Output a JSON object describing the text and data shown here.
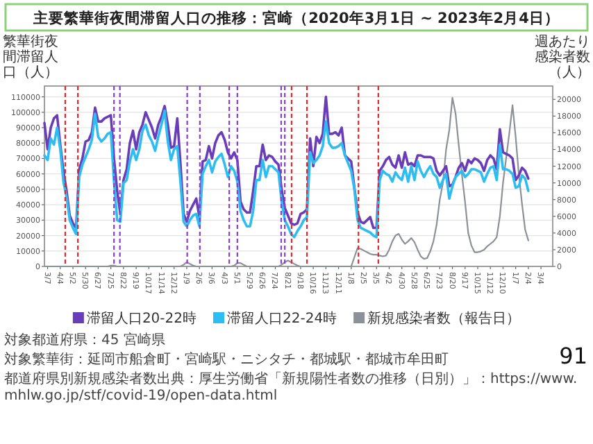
{
  "chart_data": {
    "type": "line",
    "title": "主要繁華街夜間滞留人口の推移：宮崎（2020年3月1日 ~ 2023年2月4日）",
    "ylabel": "繁華街夜間滞留人口（人）",
    "y2label": "週あたり感染者数（人）",
    "x": [
      "2020-02-29",
      "2020-03-07",
      "2020-03-14",
      "2020-03-21",
      "2020-03-28",
      "2020-04-04",
      "2020-04-11",
      "2020-04-18",
      "2020-04-25",
      "2020-05-02",
      "2020-05-09",
      "2020-05-16",
      "2020-05-23",
      "2020-05-30",
      "2020-06-06",
      "2020-06-13",
      "2020-06-20",
      "2020-06-27",
      "2020-07-04",
      "2020-07-11",
      "2020-07-18",
      "2020-07-25",
      "2020-08-01",
      "2020-08-08",
      "2020-08-15",
      "2020-08-22",
      "2020-08-29",
      "2020-09-05",
      "2020-09-12",
      "2020-09-19",
      "2020-09-26",
      "2020-10-03",
      "2020-10-10",
      "2020-10-17",
      "2020-10-24",
      "2020-10-31",
      "2020-11-07",
      "2020-11-14",
      "2020-11-21",
      "2020-11-28",
      "2020-12-05",
      "2020-12-12",
      "2020-12-19",
      "2020-12-26",
      "2021-01-02",
      "2021-01-09",
      "2021-01-16",
      "2021-01-23",
      "2021-01-30",
      "2021-02-06",
      "2021-02-13",
      "2021-02-20",
      "2021-02-27",
      "2021-03-06",
      "2021-03-13",
      "2021-03-20",
      "2021-03-27",
      "2021-04-03",
      "2021-04-10",
      "2021-04-17",
      "2021-04-24",
      "2021-05-01",
      "2021-05-08",
      "2021-05-15",
      "2021-05-22",
      "2021-05-29",
      "2021-06-05",
      "2021-06-12",
      "2021-06-19",
      "2021-06-26",
      "2021-07-03",
      "2021-07-10",
      "2021-07-17",
      "2021-07-24",
      "2021-07-31",
      "2021-08-07",
      "2021-08-14",
      "2021-08-21",
      "2021-08-28",
      "2021-09-04",
      "2021-09-11",
      "2021-09-18",
      "2021-09-25",
      "2021-10-02",
      "2021-10-09",
      "2021-10-16",
      "2021-10-23",
      "2021-10-30",
      "2021-11-06",
      "2021-11-13",
      "2021-11-20",
      "2021-11-27",
      "2021-12-04",
      "2021-12-11",
      "2021-12-18",
      "2021-12-25",
      "2022-01-01",
      "2022-01-08",
      "2022-01-15",
      "2022-01-22",
      "2022-01-29",
      "2022-02-05",
      "2022-02-12",
      "2022-02-19",
      "2022-02-26",
      "2022-03-05",
      "2022-03-12",
      "2022-03-19",
      "2022-03-26",
      "2022-04-02",
      "2022-04-09",
      "2022-04-16",
      "2022-04-23",
      "2022-04-30",
      "2022-05-07",
      "2022-05-14",
      "2022-05-21",
      "2022-05-28",
      "2022-06-04",
      "2022-06-11",
      "2022-06-18",
      "2022-06-25",
      "2022-07-02",
      "2022-07-09",
      "2022-07-16",
      "2022-07-23",
      "2022-07-30",
      "2022-08-06",
      "2022-08-13",
      "2022-08-20",
      "2022-08-27",
      "2022-09-03",
      "2022-09-10",
      "2022-09-17",
      "2022-09-24",
      "2022-10-01",
      "2022-10-08",
      "2022-10-15",
      "2022-10-22",
      "2022-10-29",
      "2022-11-05",
      "2022-11-12",
      "2022-11-19",
      "2022-11-26",
      "2022-12-03",
      "2022-12-10",
      "2022-12-17",
      "2022-12-24",
      "2022-12-31",
      "2023-01-07",
      "2023-01-14",
      "2023-01-21",
      "2023-01-28",
      "2023-02-04"
    ],
    "series": [
      {
        "name": "滞留人口20-22時",
        "color": "#6a3db8",
        "values": [
          93000,
          76000,
          90000,
          96000,
          98000,
          79000,
          62000,
          49000,
          33000,
          28000,
          25000,
          63000,
          70000,
          81000,
          82000,
          87000,
          103000,
          94000,
          94000,
          96000,
          97000,
          98000,
          70000,
          49000,
          34000,
          56000,
          63000,
          80000,
          88000,
          76000,
          87000,
          92000,
          100000,
          95000,
          90000,
          83000,
          92000,
          97000,
          104000,
          92000,
          77000,
          78000,
          96000,
          67000,
          34000,
          29000,
          36000,
          40000,
          44000,
          32000,
          68000,
          69000,
          78000,
          70000,
          80000,
          85000,
          87000,
          82000,
          74000,
          70000,
          74000,
          69000,
          42000,
          37000,
          35000,
          35000,
          49000,
          65000,
          65000,
          79000,
          69000,
          72000,
          71000,
          68000,
          66000,
          50000,
          38000,
          33000,
          28000,
          27000,
          28000,
          34000,
          35000,
          37000,
          83000,
          65000,
          84000,
          80000,
          86000,
          110000,
          86000,
          86000,
          87000,
          85000,
          90000,
          72000,
          70000,
          68000,
          51000,
          35000,
          29000,
          28000,
          30000,
          32000,
          25000,
          25000,
          62000,
          65000,
          69000,
          71000,
          66000,
          64000,
          72000,
          64000,
          74000,
          66000,
          67000,
          65000,
          72000,
          72000,
          71000,
          71000,
          71000,
          70000,
          62000,
          59000,
          62000,
          65000,
          52000,
          53000,
          58000,
          64000,
          67000,
          62000,
          69000,
          67000,
          70000,
          69000,
          67000,
          62000,
          69000,
          72000,
          70000,
          63000,
          89000,
          74000,
          73000,
          72000,
          70000,
          56000,
          59000,
          64000,
          62000,
          57000
        ]
      },
      {
        "name": "滞留人口22-24時",
        "color": "#2dbdf0",
        "values": [
          72000,
          69000,
          83000,
          79000,
          90000,
          76000,
          55000,
          45000,
          30000,
          25000,
          21000,
          58000,
          66000,
          71000,
          76000,
          82000,
          99000,
          84000,
          81000,
          83000,
          86000,
          87000,
          55000,
          30000,
          29000,
          54000,
          56000,
          68000,
          76000,
          69000,
          76000,
          88000,
          92000,
          85000,
          81000,
          75000,
          84000,
          92000,
          101000,
          81000,
          69000,
          76000,
          78000,
          55000,
          29000,
          26000,
          30000,
          33000,
          34000,
          26000,
          60000,
          65000,
          69000,
          61000,
          68000,
          71000,
          73000,
          66000,
          58000,
          65000,
          62000,
          55000,
          36000,
          30000,
          26000,
          26000,
          36000,
          56000,
          56000,
          69000,
          58000,
          65000,
          65000,
          63000,
          61000,
          42000,
          30000,
          26000,
          21000,
          19000,
          23000,
          26000,
          30000,
          32000,
          74000,
          67000,
          69000,
          72000,
          78000,
          94000,
          80000,
          77000,
          77000,
          78000,
          80000,
          72000,
          67000,
          62000,
          50000,
          30000,
          25000,
          24000,
          23000,
          22000,
          20000,
          19000,
          56000,
          62000,
          60000,
          59000,
          55000,
          61000,
          58000,
          56000,
          64000,
          55000,
          65000,
          56000,
          68000,
          62000,
          58000,
          62000,
          65000,
          60000,
          58000,
          51000,
          56000,
          60000,
          44000,
          52000,
          58000,
          60000,
          62000,
          58000,
          60000,
          63000,
          63000,
          62000,
          61000,
          55000,
          60000,
          64000,
          65000,
          56000,
          79000,
          63000,
          63000,
          62000,
          60000,
          51000,
          52000,
          59000,
          57000,
          49000
        ]
      },
      {
        "name": "新規感染者数（報告日）",
        "color": "#8c9199",
        "axis": "y2",
        "values": [
          0,
          0,
          0,
          0,
          0,
          0,
          0,
          0,
          0,
          0,
          0,
          0,
          0,
          0,
          0,
          0,
          0,
          0,
          0,
          0,
          0,
          100,
          100,
          0,
          0,
          0,
          0,
          0,
          0,
          0,
          0,
          0,
          0,
          0,
          0,
          0,
          0,
          0,
          0,
          0,
          0,
          0,
          0,
          0,
          200,
          500,
          300,
          100,
          0,
          0,
          0,
          0,
          0,
          0,
          0,
          0,
          0,
          0,
          0,
          0,
          100,
          400,
          400,
          200,
          0,
          0,
          0,
          0,
          0,
          0,
          0,
          0,
          0,
          0,
          0,
          200,
          500,
          700,
          500,
          300,
          100,
          0,
          0,
          0,
          0,
          0,
          0,
          0,
          0,
          0,
          0,
          0,
          0,
          0,
          0,
          0,
          0,
          0,
          1100,
          2200,
          2100,
          1900,
          1700,
          1500,
          1400,
          1400,
          1300,
          1200,
          1300,
          2000,
          3000,
          3700,
          3900,
          3200,
          2700,
          3000,
          3400,
          2900,
          2000,
          1200,
          900,
          1000,
          1800,
          3000,
          5000,
          8000,
          10000,
          14000,
          16300,
          20200,
          18300,
          14500,
          11000,
          7700,
          4000,
          2500,
          1700,
          1700,
          1800,
          2000,
          2400,
          2700,
          3000,
          3500,
          6000,
          10000,
          13000,
          16000,
          19300,
          15500,
          11000,
          7500,
          4400,
          3100
        ]
      }
    ],
    "xlim": [
      "2020-02-29",
      "2023-03-30"
    ],
    "xticks": [
      {
        "value": "2020-03-07",
        "label": "3/7"
      },
      {
        "value": "2020-04-04",
        "label": "4/4"
      },
      {
        "value": "2020-05-02",
        "label": "5/2"
      },
      {
        "value": "2020-05-30",
        "label": "5/30"
      },
      {
        "value": "2020-06-27",
        "label": "6/27"
      },
      {
        "value": "2020-07-25",
        "label": "7/25"
      },
      {
        "value": "2020-08-22",
        "label": "8/22"
      },
      {
        "value": "2020-09-19",
        "label": "9/19"
      },
      {
        "value": "2020-10-17",
        "label": "10/17"
      },
      {
        "value": "2020-11-14",
        "label": "11/14"
      },
      {
        "value": "2020-12-12",
        "label": "12/12"
      },
      {
        "value": "2021-01-09",
        "label": "1/9"
      },
      {
        "value": "2021-02-06",
        "label": "2/6"
      },
      {
        "value": "2021-03-06",
        "label": "3/6"
      },
      {
        "value": "2021-04-03",
        "label": "4/3"
      },
      {
        "value": "2021-05-01",
        "label": "5/1"
      },
      {
        "value": "2021-05-29",
        "label": "5/29"
      },
      {
        "value": "2021-06-26",
        "label": "6/26"
      },
      {
        "value": "2021-07-24",
        "label": "7/24"
      },
      {
        "value": "2021-08-21",
        "label": "8/21"
      },
      {
        "value": "2021-09-18",
        "label": "9/18"
      },
      {
        "value": "2021-10-16",
        "label": "10/16"
      },
      {
        "value": "2021-11-13",
        "label": "11/13"
      },
      {
        "value": "2021-12-11",
        "label": "12/11"
      },
      {
        "value": "2022-01-08",
        "label": "1/8"
      },
      {
        "value": "2022-02-05",
        "label": "2/5"
      },
      {
        "value": "2022-03-05",
        "label": "3/5"
      },
      {
        "value": "2022-04-02",
        "label": "4/2"
      },
      {
        "value": "2022-04-30",
        "label": "4/30"
      },
      {
        "value": "2022-05-28",
        "label": "5/28"
      },
      {
        "value": "2022-06-25",
        "label": "6/25"
      },
      {
        "value": "2022-07-23",
        "label": "7/23"
      },
      {
        "value": "2022-08-20",
        "label": "8/20"
      },
      {
        "value": "2022-09-17",
        "label": "9/17"
      },
      {
        "value": "2022-10-15",
        "label": "10/15"
      },
      {
        "value": "2022-11-12",
        "label": "11/12"
      },
      {
        "value": "2022-12-10",
        "label": "12/10"
      },
      {
        "value": "2023-01-07",
        "label": "1/7"
      },
      {
        "value": "2023-02-04",
        "label": "2/4"
      },
      {
        "value": "2023-03-04",
        "label": "3/4"
      }
    ],
    "ylim": [
      0,
      117000
    ],
    "yticks": [
      0,
      10000,
      20000,
      30000,
      40000,
      50000,
      60000,
      70000,
      80000,
      90000,
      100000,
      110000
    ],
    "y2lim": [
      0,
      21600
    ],
    "y2ticks": [
      0,
      2000,
      4000,
      6000,
      8000,
      10000,
      12000,
      14000,
      16000,
      18000,
      20000
    ],
    "ref_lines": [
      {
        "axis": "x",
        "value": "2020-04-15",
        "color": "#e8262a",
        "line_style": "dashed"
      },
      {
        "axis": "x",
        "value": "2020-05-13",
        "color": "#e8262a",
        "line_style": "dashed"
      },
      {
        "axis": "x",
        "value": "2020-08-01",
        "color": "#8a3fd0",
        "line_style": "dashed"
      },
      {
        "axis": "x",
        "value": "2020-08-14",
        "color": "#8a3fd0",
        "line_style": "dashed"
      },
      {
        "axis": "x",
        "value": "2021-01-10",
        "color": "#8a3fd0",
        "line_style": "dashed"
      },
      {
        "axis": "x",
        "value": "2021-02-07",
        "color": "#8a3fd0",
        "line_style": "dashed"
      },
      {
        "axis": "x",
        "value": "2021-04-13",
        "color": "#8a3fd0",
        "line_style": "dashed"
      },
      {
        "axis": "x",
        "value": "2021-05-01",
        "color": "#8a3fd0",
        "line_style": "dashed"
      },
      {
        "axis": "x",
        "value": "2021-08-06",
        "color": "#8a3fd0",
        "line_style": "dashed"
      },
      {
        "axis": "x",
        "value": "2021-08-14",
        "color": "#8a3fd0",
        "line_style": "dashed"
      },
      {
        "axis": "x",
        "value": "2021-08-29",
        "color": "#e8262a",
        "line_style": "dashed"
      },
      {
        "axis": "x",
        "value": "2021-10-02",
        "color": "#e8262a",
        "line_style": "dashed"
      },
      {
        "axis": "x",
        "value": "2022-01-24",
        "color": "#e8262a",
        "line_style": "dashed"
      },
      {
        "axis": "x",
        "value": "2022-03-09",
        "color": "#e8262a",
        "line_style": "dashed"
      }
    ],
    "grid": "y",
    "legend": "bottom",
    "marker": "none",
    "line_style": "solid",
    "annotations": [
      "対象都道府県：45 宮崎県",
      "対象繁華街：延岡市船倉町・宮崎駅・ニシタチ・都城駅・都城市牟田町",
      "都道府県別新規感染者数出典：厚生労働省「新規陽性者数の推移（日別）」：https://www.mhlw.go.jp/stf/covid-19/open-data.html",
      "91"
    ]
  }
}
